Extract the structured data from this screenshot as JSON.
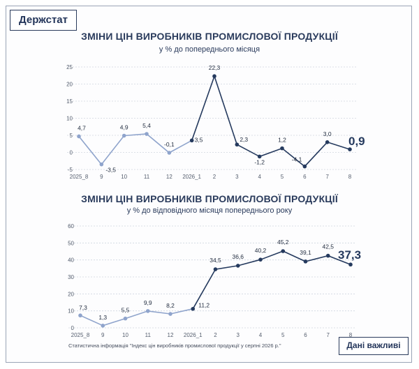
{
  "brand": "Держстат",
  "chart_data": [
    {
      "type": "line",
      "title": "ЗМІНИ ЦІН ВИРОБНИКІВ ПРОМИСЛОВОЇ ПРОДУКЦІЇ",
      "subtitle": "у % до попереднього місяця",
      "categories": [
        "2025_8",
        "9",
        "10",
        "11",
        "12",
        "2026_1",
        "2",
        "3",
        "4",
        "5",
        "6",
        "7",
        "8"
      ],
      "values": [
        4.7,
        -3.5,
        4.9,
        5.4,
        -0.1,
        3.5,
        22.3,
        2.3,
        -1.2,
        1.2,
        -4.1,
        3.0,
        0.9
      ],
      "value_labels": [
        "4,7",
        "-3,5",
        "4,9",
        "5,4",
        "-0,1",
        "3,5",
        "22,3",
        "2,3",
        "-1,2",
        "1,2",
        "-4,1",
        "3,0",
        "0,9"
      ],
      "yticks": [
        -5,
        0,
        5,
        10,
        15,
        20,
        25
      ],
      "ylim": [
        -5,
        25
      ],
      "grid": true,
      "colors": {
        "past": "#8fa4cc",
        "current": "#253a5e"
      }
    },
    {
      "type": "line",
      "title": "ЗМІНИ ЦІН ВИРОБНИКІВ ПРОМИСЛОВОЇ ПРОДУКЦІЇ",
      "subtitle": "у % до відповідного місяця попереднього року",
      "categories": [
        "2025_8",
        "9",
        "10",
        "11",
        "12",
        "2026_1",
        "2",
        "3",
        "4",
        "5",
        "6",
        "7",
        "8"
      ],
      "values": [
        7.3,
        1.3,
        5.5,
        9.9,
        8.2,
        11.2,
        34.5,
        36.6,
        40.2,
        45.2,
        39.1,
        42.5,
        37.3
      ],
      "value_labels": [
        "7,3",
        "1,3",
        "5,5",
        "9,9",
        "8,2",
        "11,2",
        "34,5",
        "36,6",
        "40,2",
        "45,2",
        "39,1",
        "42,5",
        "37,3"
      ],
      "yticks": [
        0,
        10,
        20,
        30,
        40,
        50,
        60
      ],
      "ylim": [
        0,
        60
      ],
      "grid": true,
      "colors": {
        "past": "#8fa4cc",
        "current": "#253a5e"
      }
    }
  ],
  "footer": {
    "note": "Статистична інформація \"Індекс цін виробників промислової продукції у серпні 2026 р.\"",
    "button": "Дані важливі"
  }
}
